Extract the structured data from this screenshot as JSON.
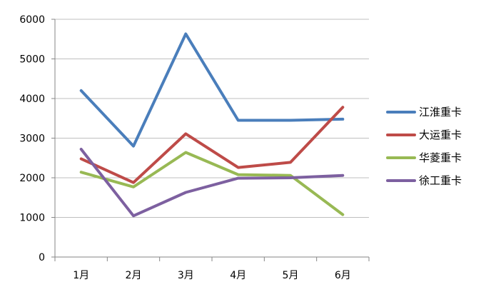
{
  "chart_data": {
    "type": "line",
    "categories": [
      "1月",
      "2月",
      "3月",
      "4月",
      "5月",
      "6月"
    ],
    "ylim": [
      0,
      6000
    ],
    "yticks": [
      0,
      1000,
      2000,
      3000,
      4000,
      5000,
      6000
    ],
    "grid": true,
    "legend_position": "right",
    "series": [
      {
        "name": "江淮重卡",
        "color": "#4a7ebb",
        "values": [
          4200,
          2800,
          5630,
          3450,
          3450,
          3480
        ]
      },
      {
        "name": "大运重卡",
        "color": "#be4b48",
        "values": [
          2480,
          1880,
          3110,
          2260,
          2390,
          3780
        ]
      },
      {
        "name": "华菱重卡",
        "color": "#98b954",
        "values": [
          2140,
          1770,
          2640,
          2080,
          2060,
          1070
        ]
      },
      {
        "name": "徐工重卡",
        "color": "#7d60a0",
        "values": [
          2720,
          1040,
          1630,
          1990,
          2000,
          2060
        ]
      }
    ]
  }
}
